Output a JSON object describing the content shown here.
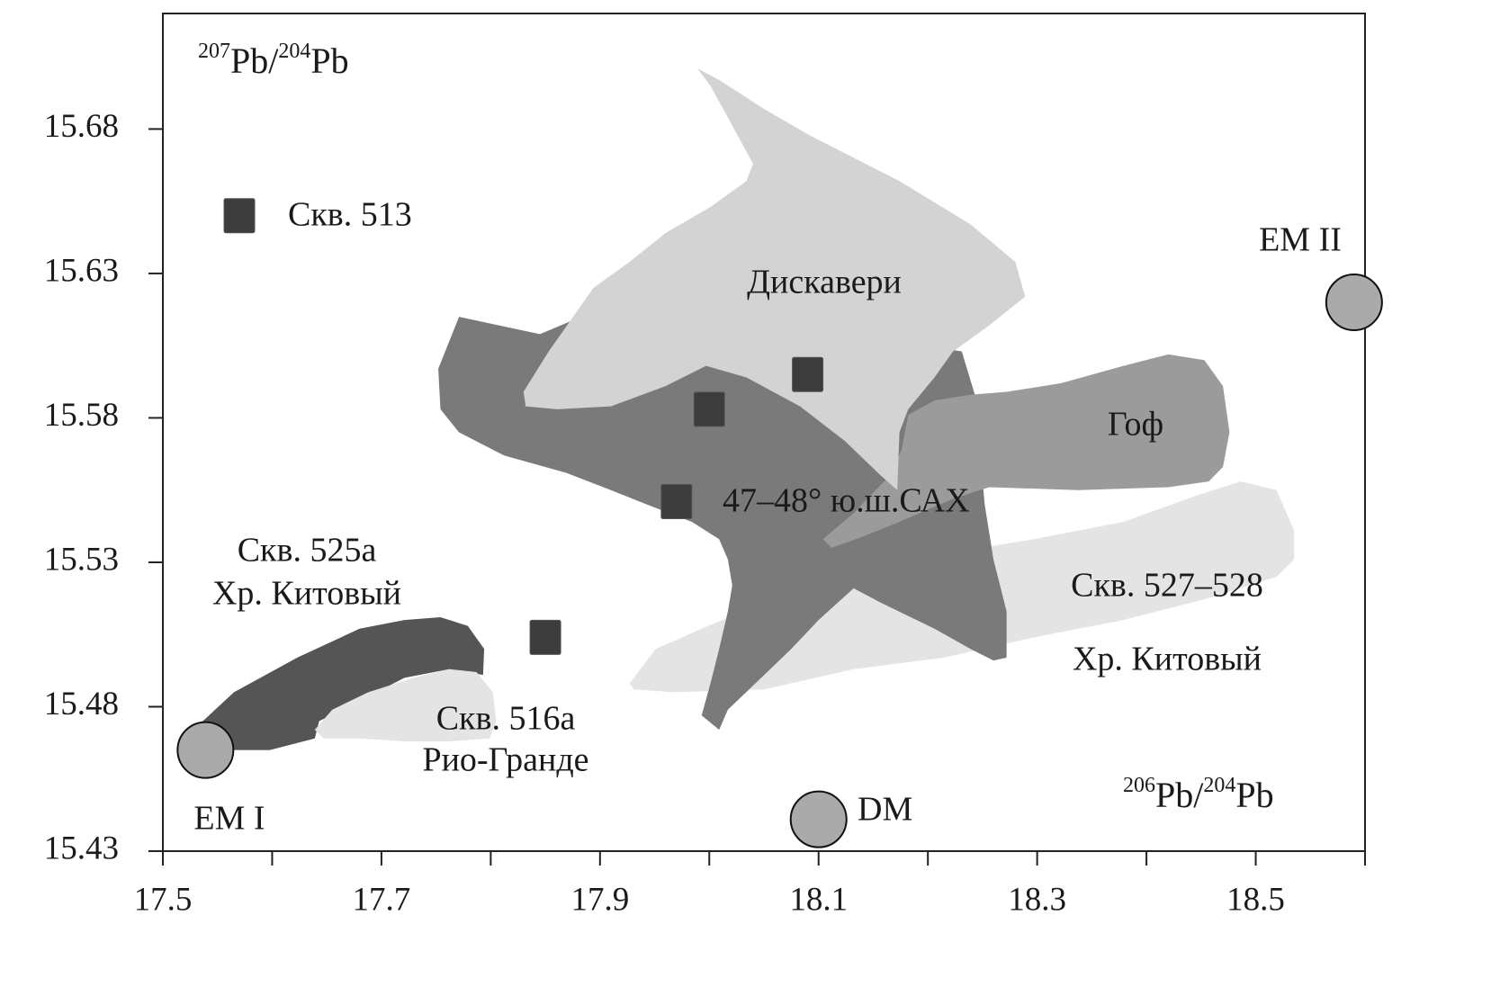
{
  "chart_data": {
    "type": "scatter",
    "xlim": [
      17.5,
      18.6
    ],
    "ylim": [
      15.43,
      15.72
    ],
    "xticks": [
      17.5,
      17.7,
      17.9,
      18.1,
      18.3,
      18.5
    ],
    "xminor_ticks": [
      17.6,
      17.8,
      18.0,
      18.2,
      18.4,
      18.6
    ],
    "yticks": [
      15.43,
      15.48,
      15.53,
      15.58,
      15.63,
      15.68
    ],
    "ylabel": [
      "207",
      "Pb/",
      "204",
      "Pb"
    ],
    "xlabel": [
      "206",
      "Pb/",
      "204",
      "Pb"
    ],
    "regions": [
      {
        "label": [
          "Скв. 527–528",
          "Хр. Китовый"
        ],
        "color": "#e4e4e4",
        "x": [
          17.927,
          17.951,
          17.993,
          18.05,
          18.132,
          18.215,
          18.297,
          18.379,
          18.445,
          18.486,
          18.519,
          18.535,
          18.535,
          18.519,
          18.461,
          18.379,
          18.297,
          18.215,
          18.132,
          18.05,
          17.968,
          17.931
        ],
        "y": [
          15.488,
          15.5,
          15.507,
          15.516,
          15.525,
          15.533,
          15.538,
          15.544,
          15.553,
          15.558,
          15.555,
          15.541,
          15.531,
          15.525,
          15.518,
          15.51,
          15.504,
          15.497,
          15.493,
          15.486,
          15.485,
          15.486
        ]
      },
      {
        "label": [
          "47–48° ю.ш.САХ"
        ],
        "color": "#7a7a7a",
        "x": [
          17.771,
          17.845,
          17.927,
          18.231,
          18.243,
          18.252,
          18.26,
          18.272,
          18.272,
          18.26,
          18.239,
          18.206,
          18.157,
          18.132,
          18.1,
          18.075,
          18.042,
          18.017,
          18.009,
          17.993,
          18.001,
          18.009,
          18.017,
          18.021,
          18.017,
          18.009,
          17.984,
          17.943,
          17.91,
          17.869,
          17.812,
          17.771,
          17.754,
          17.752
        ],
        "y": [
          15.615,
          15.609,
          15.622,
          15.603,
          15.588,
          15.55,
          15.531,
          15.513,
          15.497,
          15.496,
          15.5,
          15.507,
          15.516,
          15.521,
          15.51,
          15.5,
          15.488,
          15.479,
          15.472,
          15.477,
          15.488,
          15.5,
          15.513,
          15.522,
          15.531,
          15.538,
          15.544,
          15.55,
          15.555,
          15.561,
          15.567,
          15.575,
          15.583,
          15.597
        ]
      },
      {
        "label": [
          "Гоф"
        ],
        "color": "#9b9b9b",
        "x": [
          18.182,
          18.206,
          18.239,
          18.272,
          18.322,
          18.379,
          18.42,
          18.453,
          18.47,
          18.476,
          18.47,
          18.457,
          18.42,
          18.338,
          18.256,
          18.223,
          18.174,
          18.141,
          18.112,
          18.104,
          18.132,
          18.165,
          18.176
        ],
        "y": [
          15.581,
          15.586,
          15.588,
          15.589,
          15.592,
          15.598,
          15.602,
          15.6,
          15.591,
          15.575,
          15.563,
          15.558,
          15.556,
          15.555,
          15.556,
          15.552,
          15.544,
          15.539,
          15.535,
          15.538,
          15.547,
          15.56,
          15.569
        ]
      },
      {
        "label": [
          "Дискавери"
        ],
        "color": "#d3d3d3",
        "x": [
          17.989,
          18.009,
          18.05,
          18.091,
          18.174,
          18.239,
          18.28,
          18.289,
          18.256,
          18.223,
          18.206,
          18.182,
          18.174,
          18.172,
          18.157,
          18.124,
          18.083,
          18.034,
          17.997,
          17.96,
          17.91,
          17.861,
          17.832,
          17.83,
          17.853,
          17.894,
          17.927,
          17.96,
          18.001,
          18.034,
          18.04,
          18.017,
          18.001
        ],
        "y": [
          15.701,
          15.697,
          15.687,
          15.678,
          15.662,
          15.647,
          15.634,
          15.622,
          15.612,
          15.603,
          15.594,
          15.583,
          15.575,
          15.555,
          15.56,
          15.572,
          15.584,
          15.594,
          15.598,
          15.591,
          15.584,
          15.583,
          15.584,
          15.589,
          15.603,
          15.625,
          15.634,
          15.644,
          15.653,
          15.662,
          15.668,
          15.684,
          15.695
        ]
      },
      {
        "label": [
          "Скв. 525а",
          "Хр. Китовый"
        ],
        "color": "#555555",
        "x": [
          17.528,
          17.565,
          17.623,
          17.68,
          17.721,
          17.754,
          17.779,
          17.794,
          17.793,
          17.762,
          17.721,
          17.68,
          17.643,
          17.639,
          17.598,
          17.561,
          17.54
        ],
        "y": [
          15.472,
          15.485,
          15.497,
          15.507,
          15.51,
          15.511,
          15.508,
          15.5,
          15.491,
          15.493,
          15.49,
          15.482,
          15.475,
          15.469,
          15.465,
          15.465,
          15.466
        ]
      },
      {
        "label": [
          "Скв. 516а",
          "Рио-Гранде"
        ],
        "color": "#e4e4e4",
        "x": [
          17.639,
          17.655,
          17.688,
          17.729,
          17.762,
          17.787,
          17.802,
          17.805,
          17.799,
          17.762,
          17.721,
          17.68,
          17.647
        ],
        "y": [
          15.472,
          15.479,
          15.485,
          15.49,
          15.493,
          15.492,
          15.485,
          15.475,
          15.469,
          15.468,
          15.468,
          15.469,
          15.469
        ]
      }
    ],
    "squares": {
      "color": "#3c3c3c",
      "x": [
        17.57,
        18.09,
        18.0,
        17.97,
        17.85
      ],
      "y": [
        15.65,
        15.595,
        15.583,
        15.551,
        15.504
      ],
      "labels": [
        "Скв. 513",
        null,
        null,
        null,
        null
      ]
    },
    "circles": {
      "color": "#aaaaaa",
      "x": [
        17.539,
        18.1,
        18.59
      ],
      "y": [
        15.465,
        15.441,
        15.62
      ],
      "labels": [
        "EM I",
        "DM",
        "EM II"
      ]
    }
  }
}
